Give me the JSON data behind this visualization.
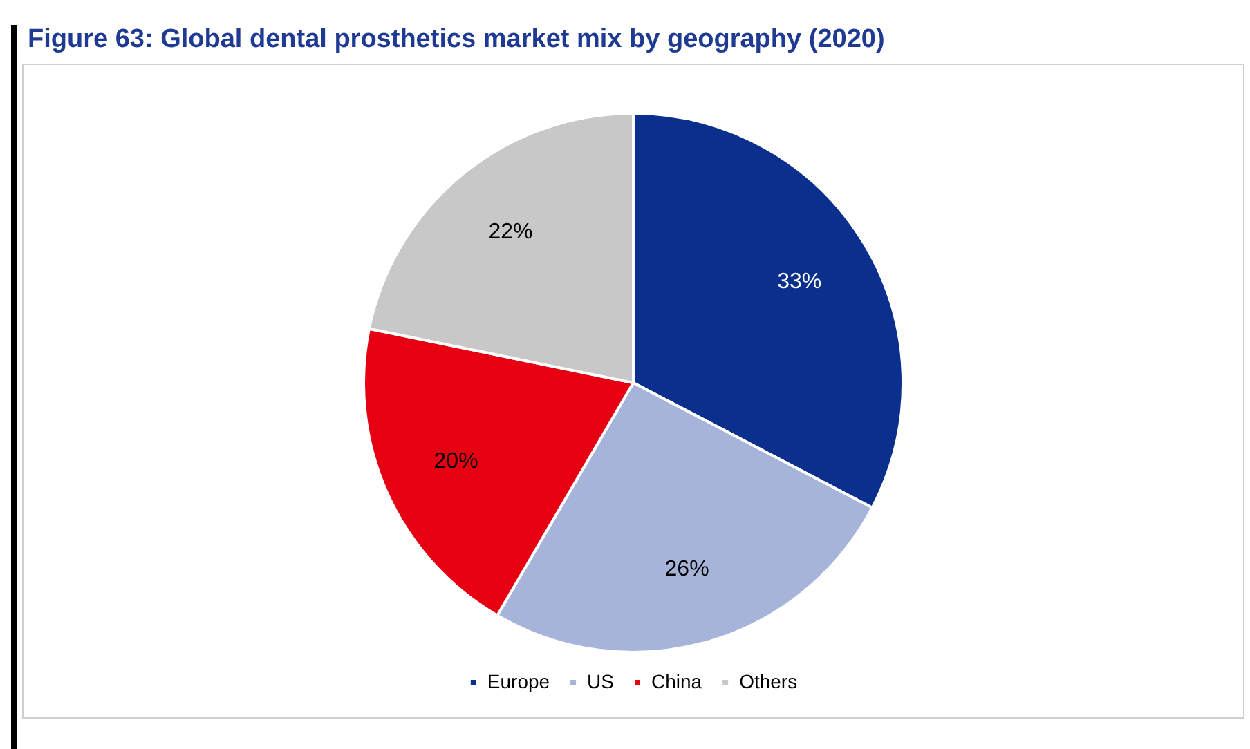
{
  "chart_data": {
    "type": "pie",
    "title": "Figure 63: Global dental prosthetics market mix by geography (2020)",
    "categories": [
      "Europe",
      "US",
      "China",
      "Others"
    ],
    "values": [
      33,
      26,
      20,
      22
    ],
    "colors": [
      "#0a2f8c",
      "#a7b4da",
      "#e60012",
      "#c8c8c8"
    ],
    "value_labels": [
      "33%",
      "26%",
      "20%",
      "22%"
    ],
    "legend": "bottom"
  }
}
